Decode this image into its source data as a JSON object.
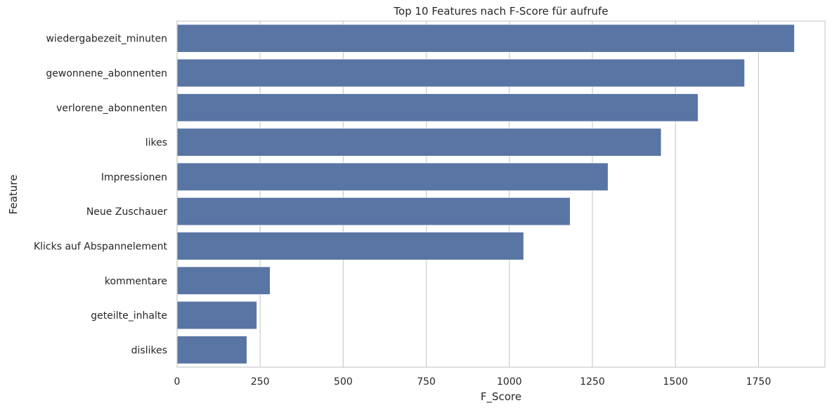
{
  "chart_data": {
    "type": "bar",
    "orientation": "horizontal",
    "title": "Top 10 Features nach F-Score für aufrufe",
    "xlabel": "F_Score",
    "ylabel": "Feature",
    "categories": [
      "wiedergabezeit_minuten",
      "gewonnene_abonnenten",
      "verlorene_abonnenten",
      "likes",
      "Impressionen",
      "Neue Zuschauer",
      "Klicks auf Abspannelement",
      "kommentare",
      "geteilte_inhalte",
      "dislikes"
    ],
    "values": [
      1858,
      1708,
      1568,
      1457,
      1297,
      1183,
      1043,
      280,
      240,
      210
    ],
    "xlim": [
      0,
      1950
    ],
    "xticks": [
      0,
      250,
      500,
      750,
      1000,
      1250,
      1500,
      1750
    ],
    "grid": true,
    "bar_color": "#5975a4",
    "grid_color": "#cccccc"
  }
}
